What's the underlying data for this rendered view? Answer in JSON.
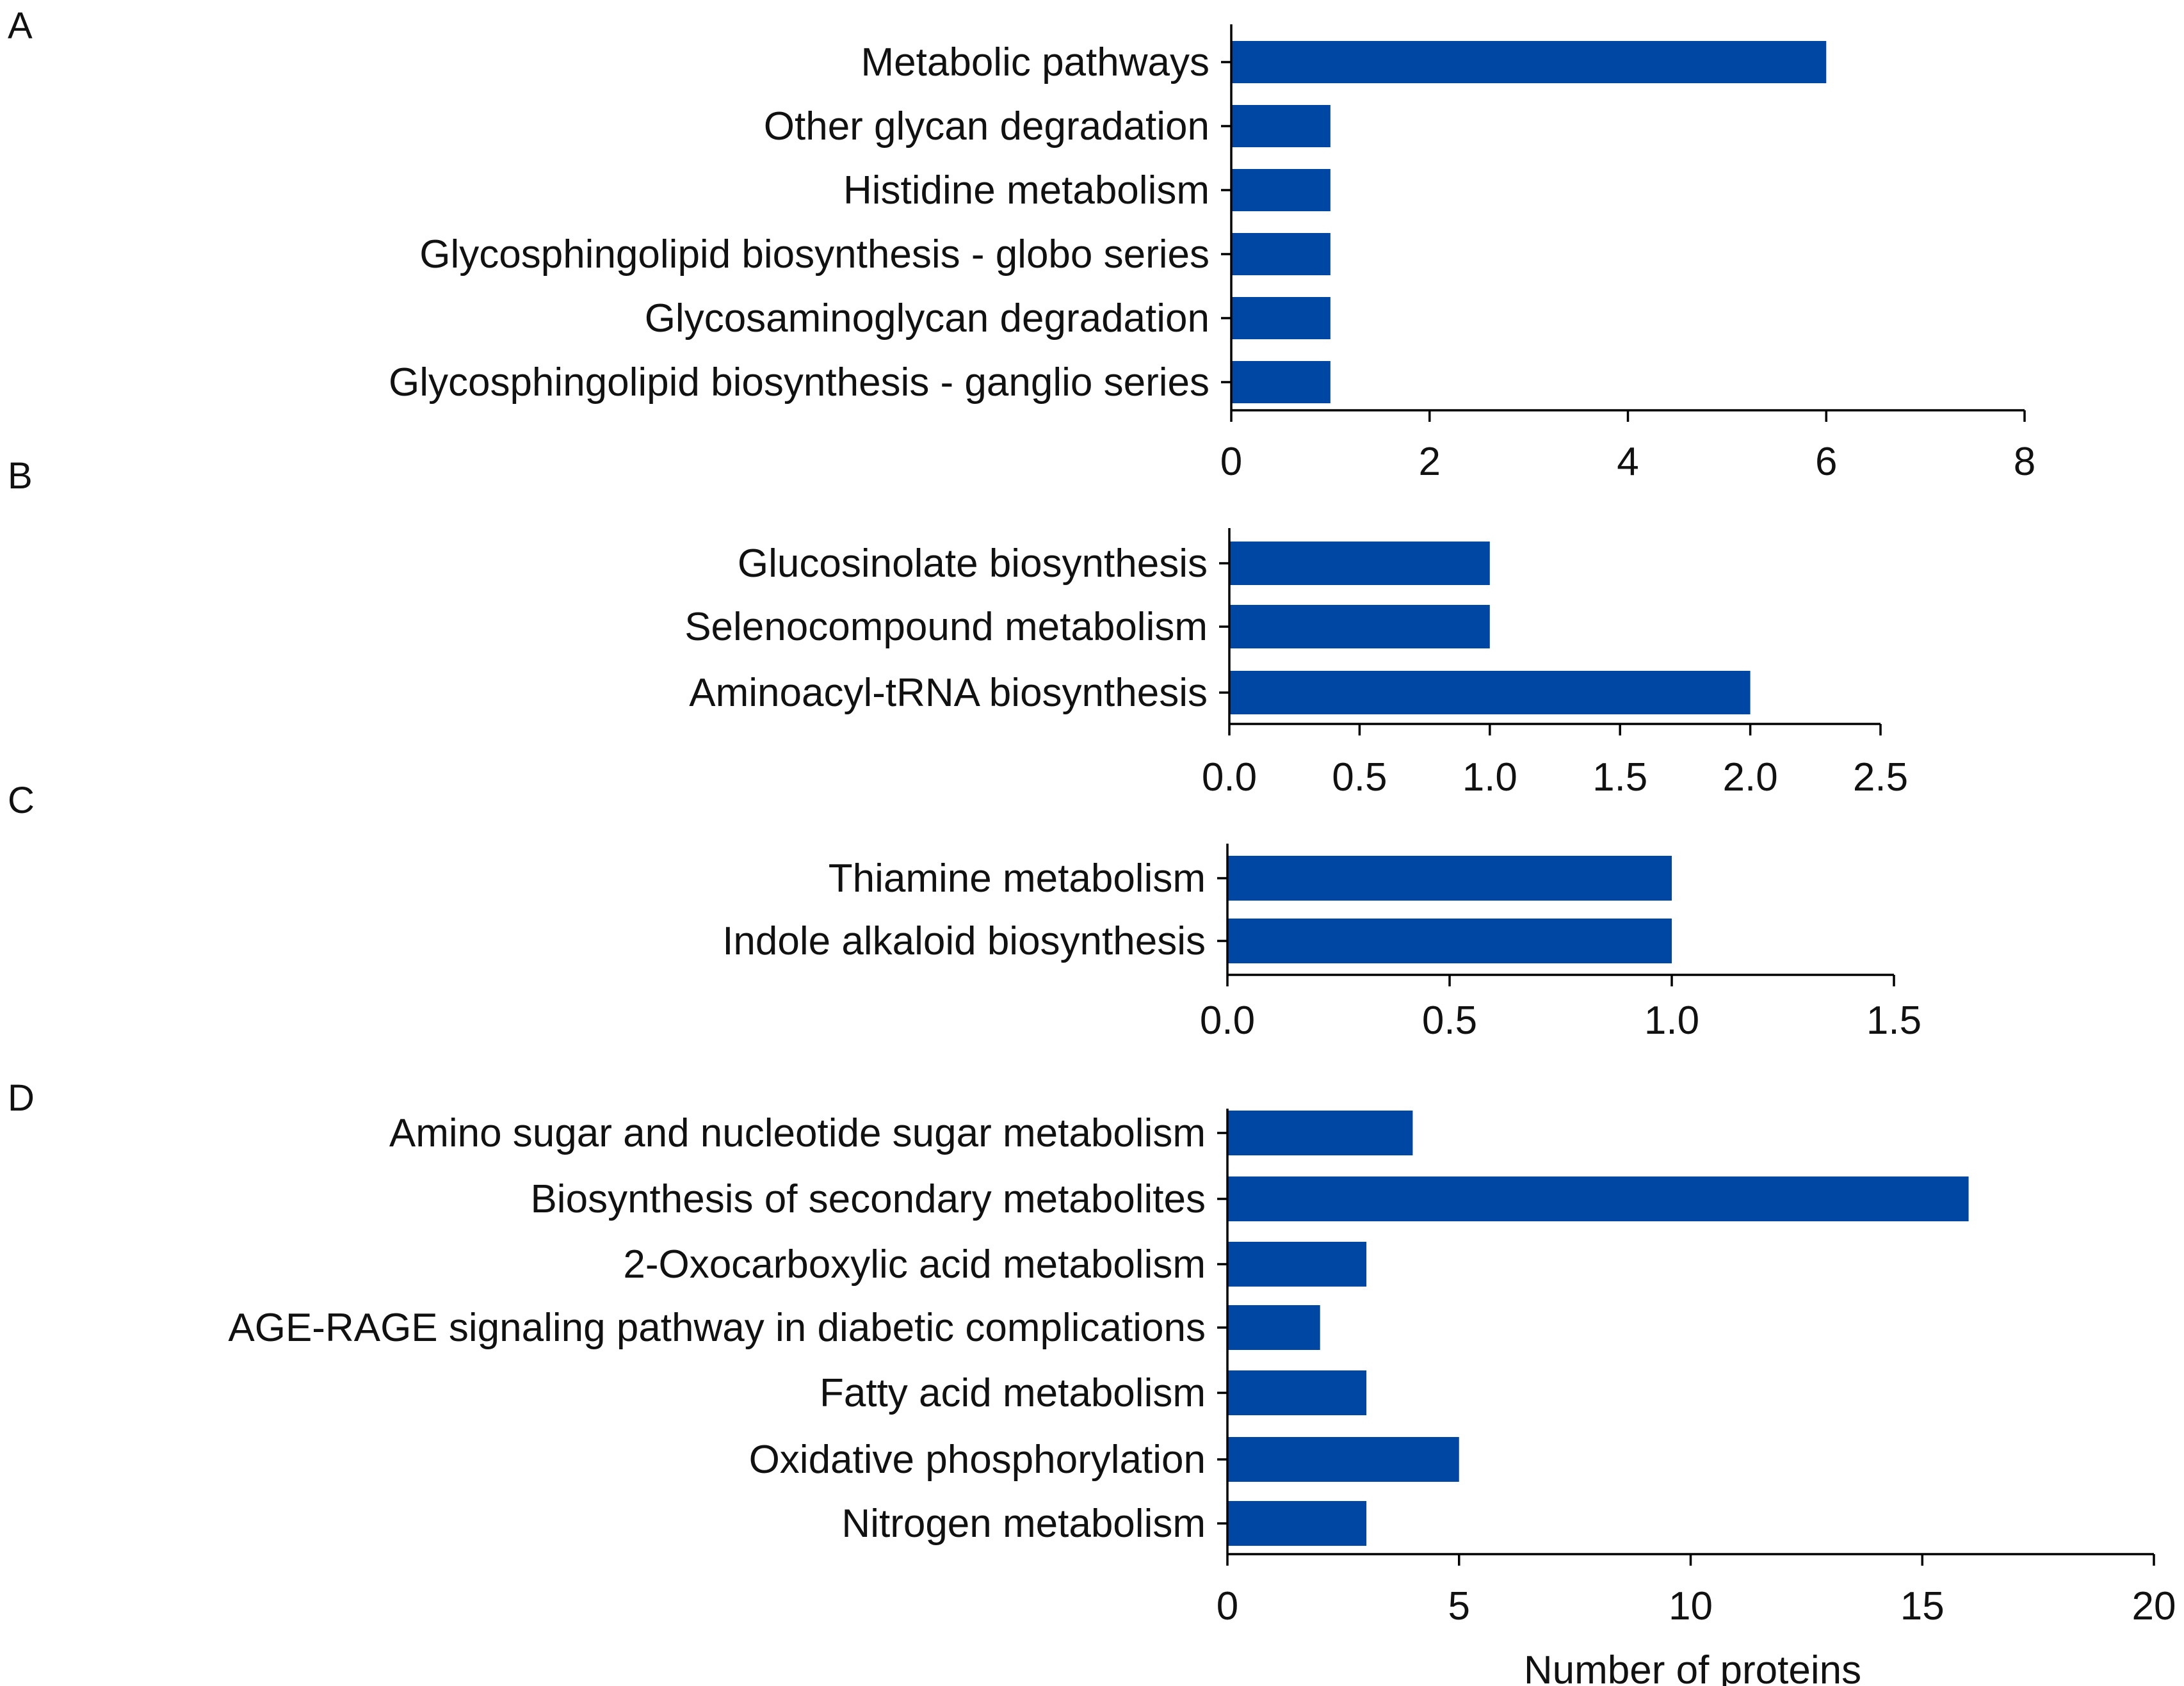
{
  "colors": {
    "bar": "#0047A4",
    "axis": "#000000",
    "text": "#111111",
    "background": "#FFFFFF"
  },
  "chart_data": [
    {
      "panel": "A",
      "type": "bar",
      "orientation": "horizontal",
      "categories": [
        "Metabolic pathways",
        "Other glycan degradation",
        "Histidine metabolism",
        "Glycosphingolipid biosynthesis - globo series",
        "Glycosaminoglycan degradation",
        "Glycosphingolipid biosynthesis - ganglio series"
      ],
      "values": [
        6,
        1,
        1,
        1,
        1,
        1
      ],
      "xlim": [
        0,
        8
      ],
      "ticks": [
        0,
        2,
        4,
        6,
        8
      ],
      "tick_labels": [
        "0",
        "2",
        "4",
        "6",
        "8"
      ],
      "xlabel": ""
    },
    {
      "panel": "B",
      "type": "bar",
      "orientation": "horizontal",
      "categories": [
        "Glucosinolate biosynthesis",
        "Selenocompound metabolism",
        "Aminoacyl-tRNA biosynthesis"
      ],
      "values": [
        1,
        1,
        2
      ],
      "xlim": [
        0,
        2.5
      ],
      "ticks": [
        0,
        0.5,
        1,
        1.5,
        2,
        2.5
      ],
      "tick_labels": [
        "0.0",
        "0.5",
        "1.0",
        "1.5",
        "2.0",
        "2.5"
      ],
      "xlabel": ""
    },
    {
      "panel": "C",
      "type": "bar",
      "orientation": "horizontal",
      "categories": [
        "Thiamine metabolism",
        "Indole alkaloid biosynthesis"
      ],
      "values": [
        1,
        1
      ],
      "xlim": [
        0,
        1.5
      ],
      "ticks": [
        0,
        0.5,
        1,
        1.5
      ],
      "tick_labels": [
        "0.0",
        "0.5",
        "1.0",
        "1.5"
      ],
      "xlabel": ""
    },
    {
      "panel": "D",
      "type": "bar",
      "orientation": "horizontal",
      "categories": [
        "Amino sugar and nucleotide sugar metabolism",
        "Biosynthesis of secondary metabolites",
        "2-Oxocarboxylic acid metabolism",
        "AGE-RAGE signaling pathway in diabetic complications",
        "Fatty acid metabolism",
        "Oxidative phosphorylation",
        "Nitrogen metabolism"
      ],
      "values": [
        4,
        16,
        3,
        2,
        3,
        5,
        3
      ],
      "xlim": [
        0,
        20
      ],
      "ticks": [
        0,
        5,
        10,
        15,
        20
      ],
      "tick_labels": [
        "0",
        "5",
        "10",
        "15",
        "20"
      ],
      "xlabel": "Number of proteins"
    }
  ]
}
